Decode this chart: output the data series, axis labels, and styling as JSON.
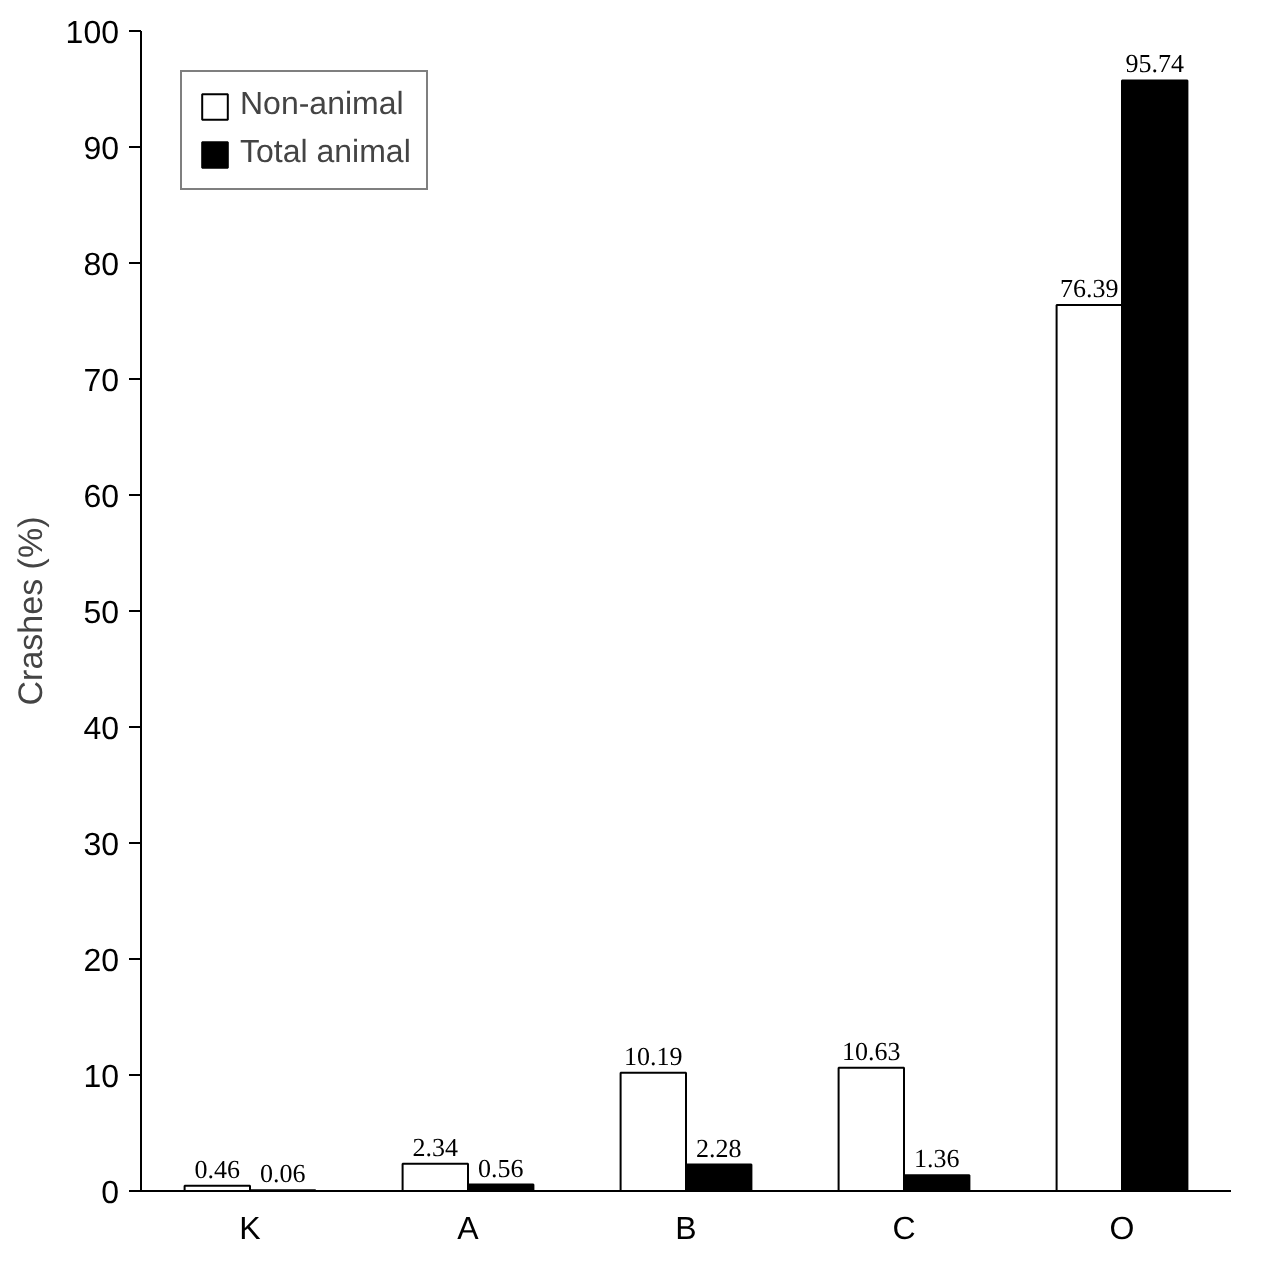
{
  "chart_data": {
    "type": "bar",
    "ylabel": "Crashes (%)",
    "categories": [
      "K",
      "A",
      "B",
      "C",
      "O"
    ],
    "series": [
      {
        "name": "Non-animal",
        "color": "#ffffff",
        "values": [
          0.46,
          2.34,
          10.19,
          10.63,
          76.39
        ]
      },
      {
        "name": "Total animal",
        "color": "#000000",
        "values": [
          0.06,
          0.56,
          2.28,
          1.36,
          95.74
        ]
      }
    ],
    "ylim": [
      0,
      100
    ],
    "yticks": [
      0,
      10,
      20,
      30,
      40,
      50,
      60,
      70,
      80,
      90,
      100
    ],
    "data_labels": true,
    "legend": "top left",
    "grid": false
  }
}
